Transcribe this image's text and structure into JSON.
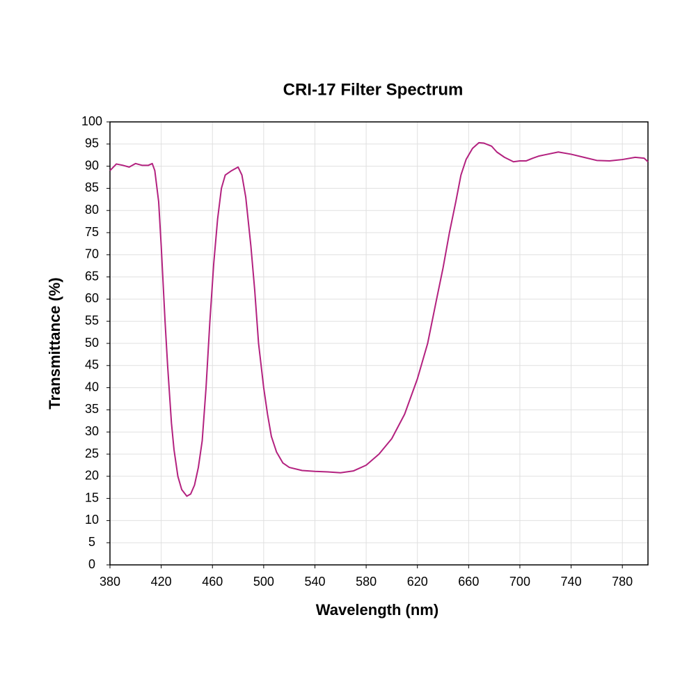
{
  "chart_data": {
    "type": "line",
    "title": "CRI-17 Filter Spectrum",
    "x_label": "Wavelength (nm)",
    "y_label": "Transmittance (%)",
    "xlim": [
      380,
      800
    ],
    "ylim": [
      0,
      100
    ],
    "xticks": [
      380,
      420,
      460,
      500,
      540,
      580,
      620,
      660,
      700,
      740,
      780
    ],
    "yticks": [
      0,
      5,
      10,
      15,
      20,
      25,
      30,
      35,
      40,
      45,
      50,
      55,
      60,
      65,
      70,
      75,
      80,
      85,
      90,
      95,
      100
    ],
    "grid": true,
    "x": [
      380,
      385,
      390,
      395,
      400,
      405,
      410,
      413,
      415,
      418,
      420,
      423,
      425,
      428,
      430,
      433,
      436,
      440,
      443,
      446,
      449,
      452,
      455,
      458,
      461,
      464,
      467,
      470,
      475,
      480,
      483,
      486,
      490,
      493,
      496,
      500,
      503,
      506,
      510,
      515,
      520,
      530,
      540,
      550,
      560,
      570,
      580,
      590,
      600,
      610,
      620,
      628,
      635,
      640,
      645,
      650,
      654,
      658,
      663,
      668,
      672,
      678,
      682,
      688,
      695,
      700,
      705,
      710,
      715,
      720,
      730,
      740,
      750,
      760,
      770,
      780,
      790,
      797,
      800
    ],
    "series": [
      {
        "name": "CRI-17",
        "color": "#b3217f",
        "values": [
          89,
          90.5,
          90.2,
          89.8,
          90.6,
          90.2,
          90.2,
          90.6,
          89,
          82,
          72,
          55,
          45,
          32,
          26,
          20,
          17,
          15.5,
          16,
          18,
          22,
          28,
          40,
          55,
          68,
          78,
          85,
          88,
          89,
          89.8,
          88,
          83,
          72,
          62,
          50,
          40,
          34,
          29,
          25.5,
          23,
          22,
          21.3,
          21.1,
          21,
          20.8,
          21.2,
          22.5,
          25,
          28.5,
          34,
          42,
          50,
          60,
          67,
          75,
          82,
          88,
          91.5,
          94,
          95.3,
          95.2,
          94.5,
          93.2,
          92,
          91,
          91.2,
          91.2,
          91.8,
          92.3,
          92.6,
          93.2,
          92.7,
          92,
          91.3,
          91.2,
          91.5,
          92,
          91.8,
          91
        ]
      }
    ]
  }
}
